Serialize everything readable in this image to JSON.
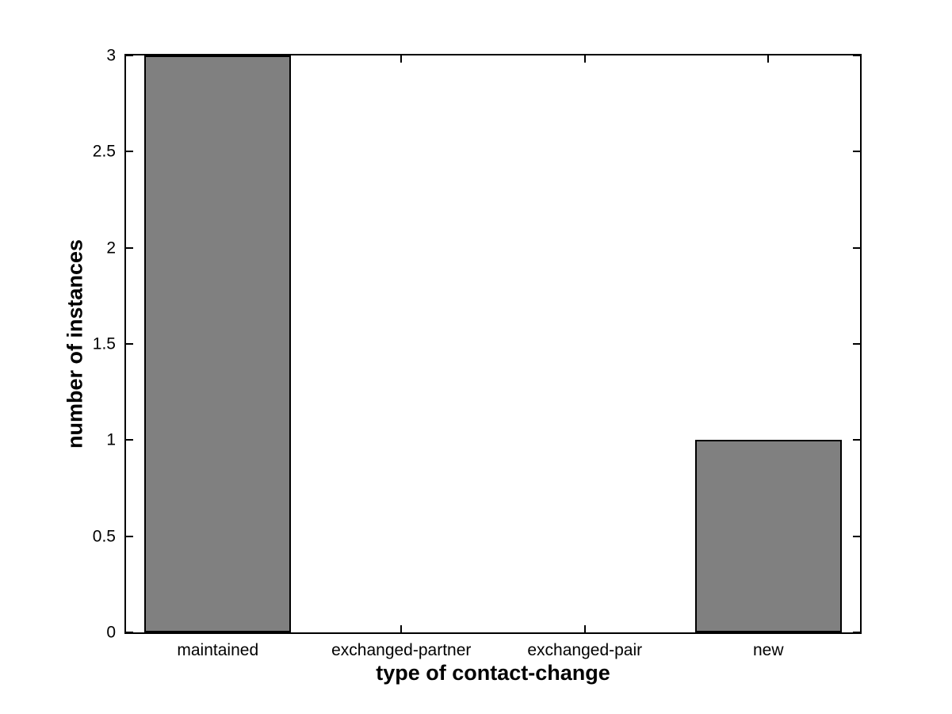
{
  "chart_data": {
    "type": "bar",
    "title": "",
    "categories": [
      "maintained",
      "exchanged-partner",
      "exchanged-pair",
      "new"
    ],
    "values": [
      3,
      0,
      0,
      1
    ],
    "xlabel": "type of contact-change",
    "ylabel": "number of instances",
    "ylim": [
      0,
      3
    ],
    "yticks": [
      0,
      0.5,
      1,
      1.5,
      2,
      2.5,
      3
    ],
    "ytick_labels": [
      "0",
      "0.5",
      "1",
      "1.5",
      "2",
      "2.5",
      "3"
    ],
    "bar_width_fraction": 0.8,
    "grid": false,
    "box": true,
    "tick_direction": "in",
    "colors": {
      "bar_fill": "#808080",
      "bar_edge": "#000000",
      "axis": "#000000",
      "text": "#000000",
      "background": "#ffffff"
    }
  }
}
